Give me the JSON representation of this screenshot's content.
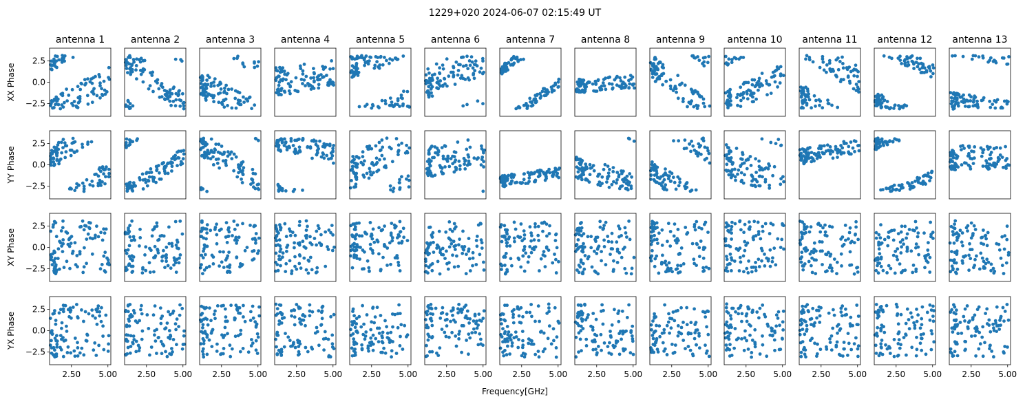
{
  "chart_data": {
    "type": "scatter",
    "title": "1229+020 2024-06-07 02:15:49 UT",
    "xlabel": "Frequency[GHz]",
    "marker_color": "#1f77b4",
    "xlim": [
      1.0,
      5.2
    ],
    "ylim": [
      -4.0,
      4.0
    ],
    "xticks": [
      2.5,
      5.0
    ],
    "xtick_labels": [
      "2.50",
      "5.00"
    ],
    "yticks": [
      -2.5,
      0.0,
      2.5
    ],
    "ytick_labels": [
      "−2.5",
      "0.0",
      "2.5"
    ],
    "columns": [
      "antenna 1",
      "antenna 2",
      "antenna 3",
      "antenna 4",
      "antenna 5",
      "antenna 6",
      "antenna 7",
      "antenna 8",
      "antenna 9",
      "antenna 10",
      "antenna 11",
      "antenna 12",
      "antenna 13"
    ],
    "rows": [
      "XX Phase",
      "YY Phase",
      "XY Phase",
      "YX Phase"
    ],
    "points_per_panel": 100,
    "panels": []
  }
}
